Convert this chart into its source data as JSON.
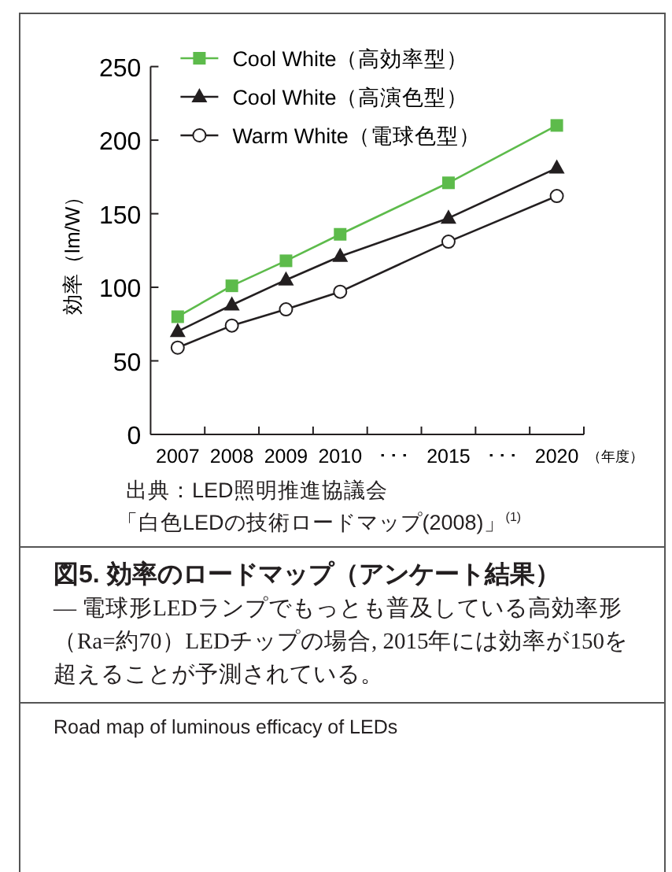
{
  "chart_data": {
    "type": "line",
    "title": "図5. 効率のロードマップ（アンケート結果）",
    "subtitle": "— 電球形LEDランプでもっとも普及している高効率形（Ra=約70）LEDチップの場合, 2015年には効率が150を超えることが予測されている。",
    "ylabel": "効率（lm/W）",
    "xlabel": "（年度）",
    "categories": [
      "2007",
      "2008",
      "2009",
      "2010",
      "･･･",
      "2015",
      "･･･",
      "2020"
    ],
    "series": [
      {
        "name": "Cool White（高効率型）",
        "color": "#5dbb4b",
        "marker": "square",
        "values": [
          80,
          101,
          118,
          136,
          null,
          171,
          null,
          210
        ]
      },
      {
        "name": "Cool White（高演色型）",
        "color": "#231f20",
        "marker": "triangle",
        "values": [
          70,
          88,
          105,
          121,
          null,
          147,
          null,
          181
        ]
      },
      {
        "name": "Warm White（電球色型）",
        "color": "#231f20",
        "marker": "circle",
        "values": [
          59,
          74,
          85,
          97,
          null,
          131,
          null,
          162
        ]
      }
    ],
    "ylim": [
      0,
      250
    ],
    "yticks": [
      0,
      50,
      100,
      150,
      200,
      250
    ],
    "legend": "top left",
    "grid": false,
    "annotations": [
      "出典：LED照明推進協議会",
      "「白色LEDの技術ロードマップ(2008)」$^{(1)}$",
      "Road map of luminous efficacy of LEDs"
    ]
  }
}
